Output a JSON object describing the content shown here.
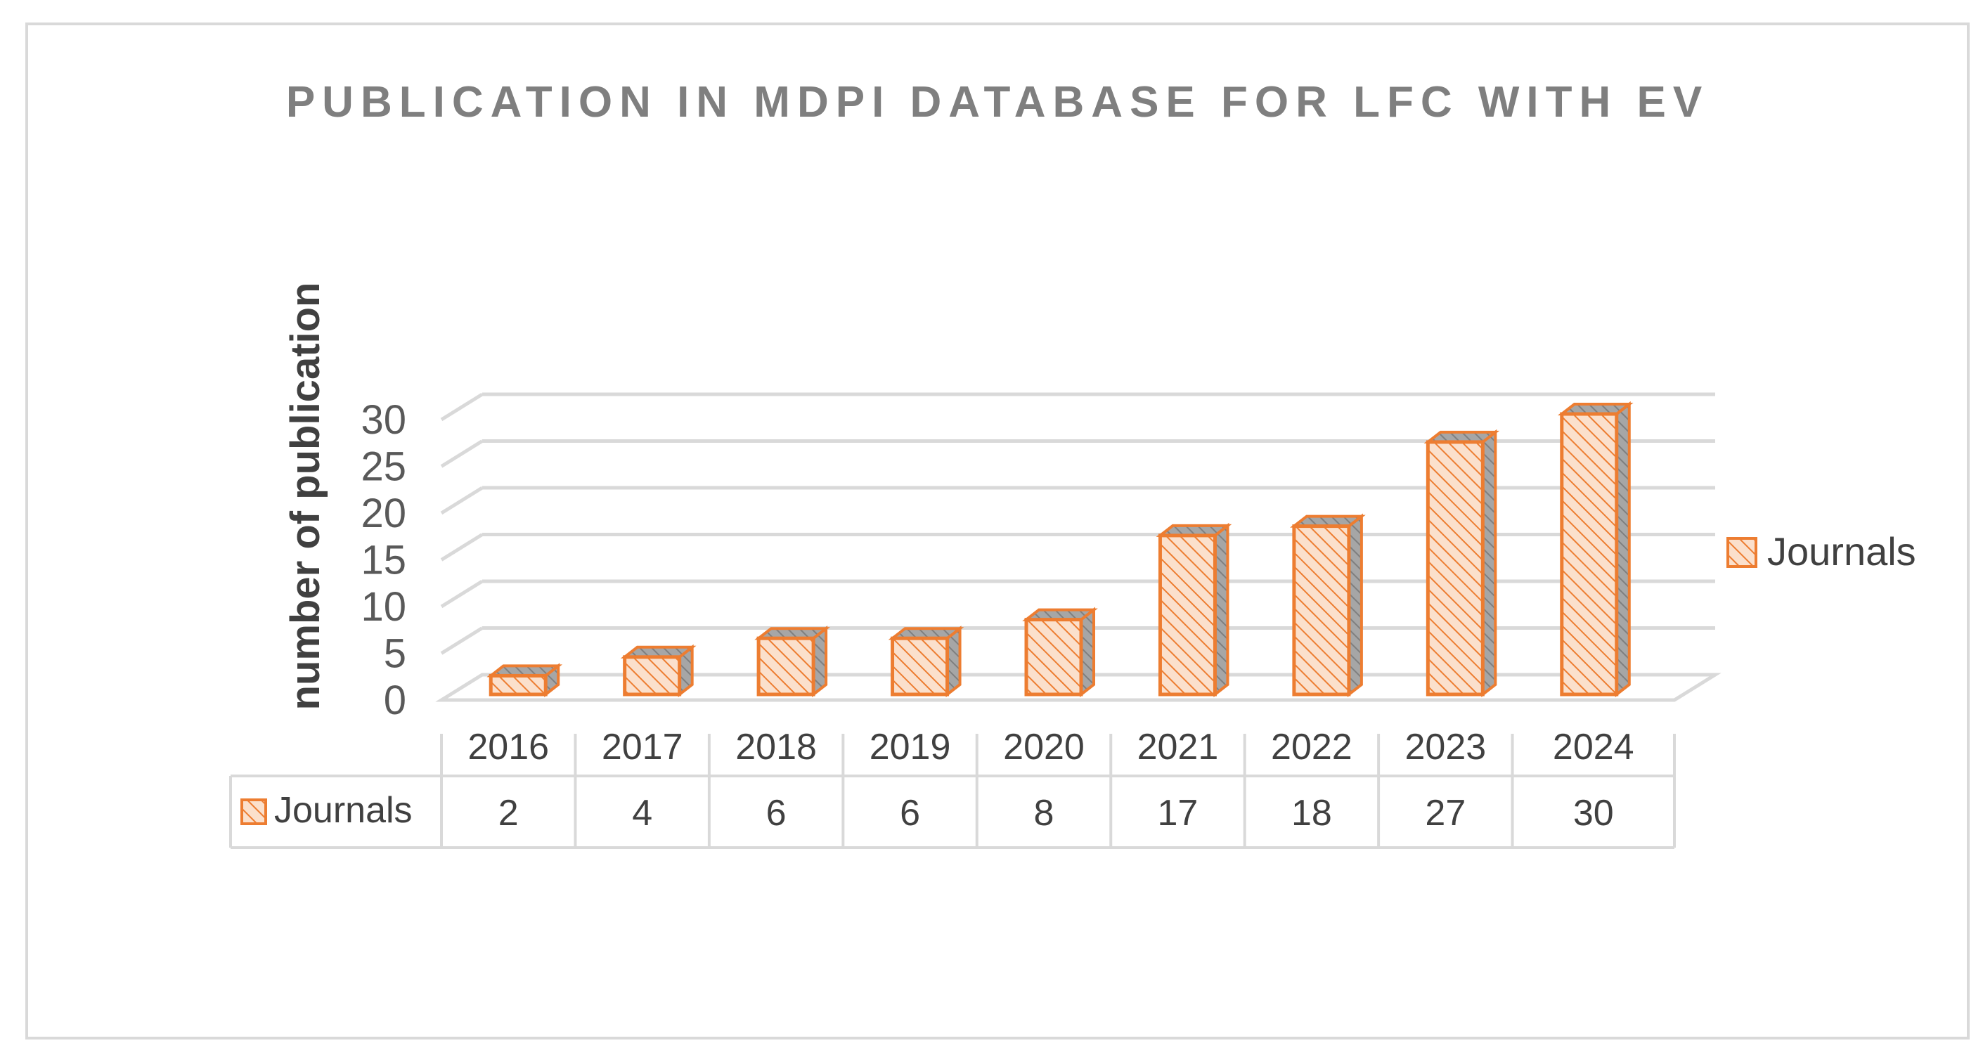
{
  "chart_data": {
    "type": "bar",
    "style": "3d-column-with-data-table",
    "title": "PUBLICATION IN MDPI DATABASE FOR LFC WITH EV",
    "xlabel": "",
    "ylabel": "number of publication",
    "categories": [
      "2016",
      "2017",
      "2018",
      "2019",
      "2020",
      "2021",
      "2022",
      "2023",
      "2024"
    ],
    "series": [
      {
        "name": "Journals",
        "values": [
          2,
          4,
          6,
          6,
          8,
          17,
          18,
          27,
          30
        ]
      }
    ],
    "ylim": [
      0,
      30
    ],
    "yticks": [
      0,
      5,
      10,
      15,
      20,
      25,
      30
    ],
    "grid": true,
    "legend": "right",
    "data_table": true
  },
  "colors": {
    "bar_outline": "#ed7d31",
    "bar_fill": "#fbe0cc",
    "bar_hatch": "#ed7d31",
    "bar_side": "#8c8c8c",
    "grid": "#d9d9d9"
  }
}
